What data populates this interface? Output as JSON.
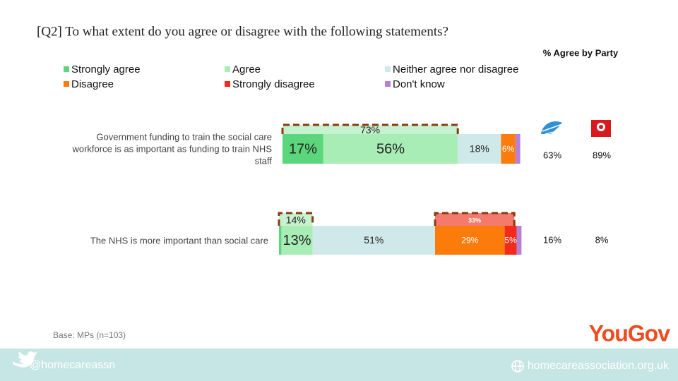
{
  "chart_data": {
    "type": "bar",
    "orientation": "horizontal",
    "stacked": true,
    "title": "[Q2] To what extent do you agree or disagree with the following  statements?",
    "categories": [
      "Government funding to train the social care workforce is as important as funding to train NHS staff",
      "The NHS is more important than social care"
    ],
    "series": [
      {
        "name": "Strongly agree",
        "color": "#5cd67c",
        "values": [
          17,
          1
        ],
        "value_labels": [
          "17%",
          null
        ]
      },
      {
        "name": "Agree",
        "color": "#a8edb6",
        "values": [
          56,
          13
        ],
        "value_labels": [
          "56%",
          "13%"
        ]
      },
      {
        "name": "Neither agree nor disagree",
        "color": "#cfe9ea",
        "values": [
          18,
          51
        ],
        "value_labels": [
          "18%",
          "51%"
        ]
      },
      {
        "name": "Disagree",
        "color": "#fb7c0b",
        "values": [
          6,
          29
        ],
        "value_labels": [
          "6%",
          "29%"
        ]
      },
      {
        "name": "Strongly disagree",
        "color": "#f42b1c",
        "values": [
          null,
          5
        ],
        "value_labels": [
          null,
          "5%"
        ]
      },
      {
        "name": "Don't know",
        "color": "#b580d8",
        "values": [
          2,
          2
        ],
        "value_labels": [
          null,
          null
        ]
      }
    ],
    "net_agree": {
      "color": "#c6f2cf",
      "values": [
        73,
        14
      ],
      "value_labels": [
        "73%",
        "14%"
      ]
    },
    "net_disagree": {
      "color": "#f47a6e",
      "values": [
        null,
        33
      ],
      "value_labels": [
        null,
        "33%"
      ]
    },
    "party_header": "% Agree by Party",
    "parties": [
      {
        "values": [
          63,
          16
        ],
        "value_labels": [
          "63%",
          "16%"
        ]
      },
      {
        "values": [
          89,
          8
        ],
        "value_labels": [
          "89%",
          "8%"
        ]
      }
    ],
    "note": "Base: MPs (n=103)"
  },
  "logo": "YouGov",
  "footer": {
    "twitter": "@homecareassn",
    "website": "homecareassociation.org.uk"
  }
}
